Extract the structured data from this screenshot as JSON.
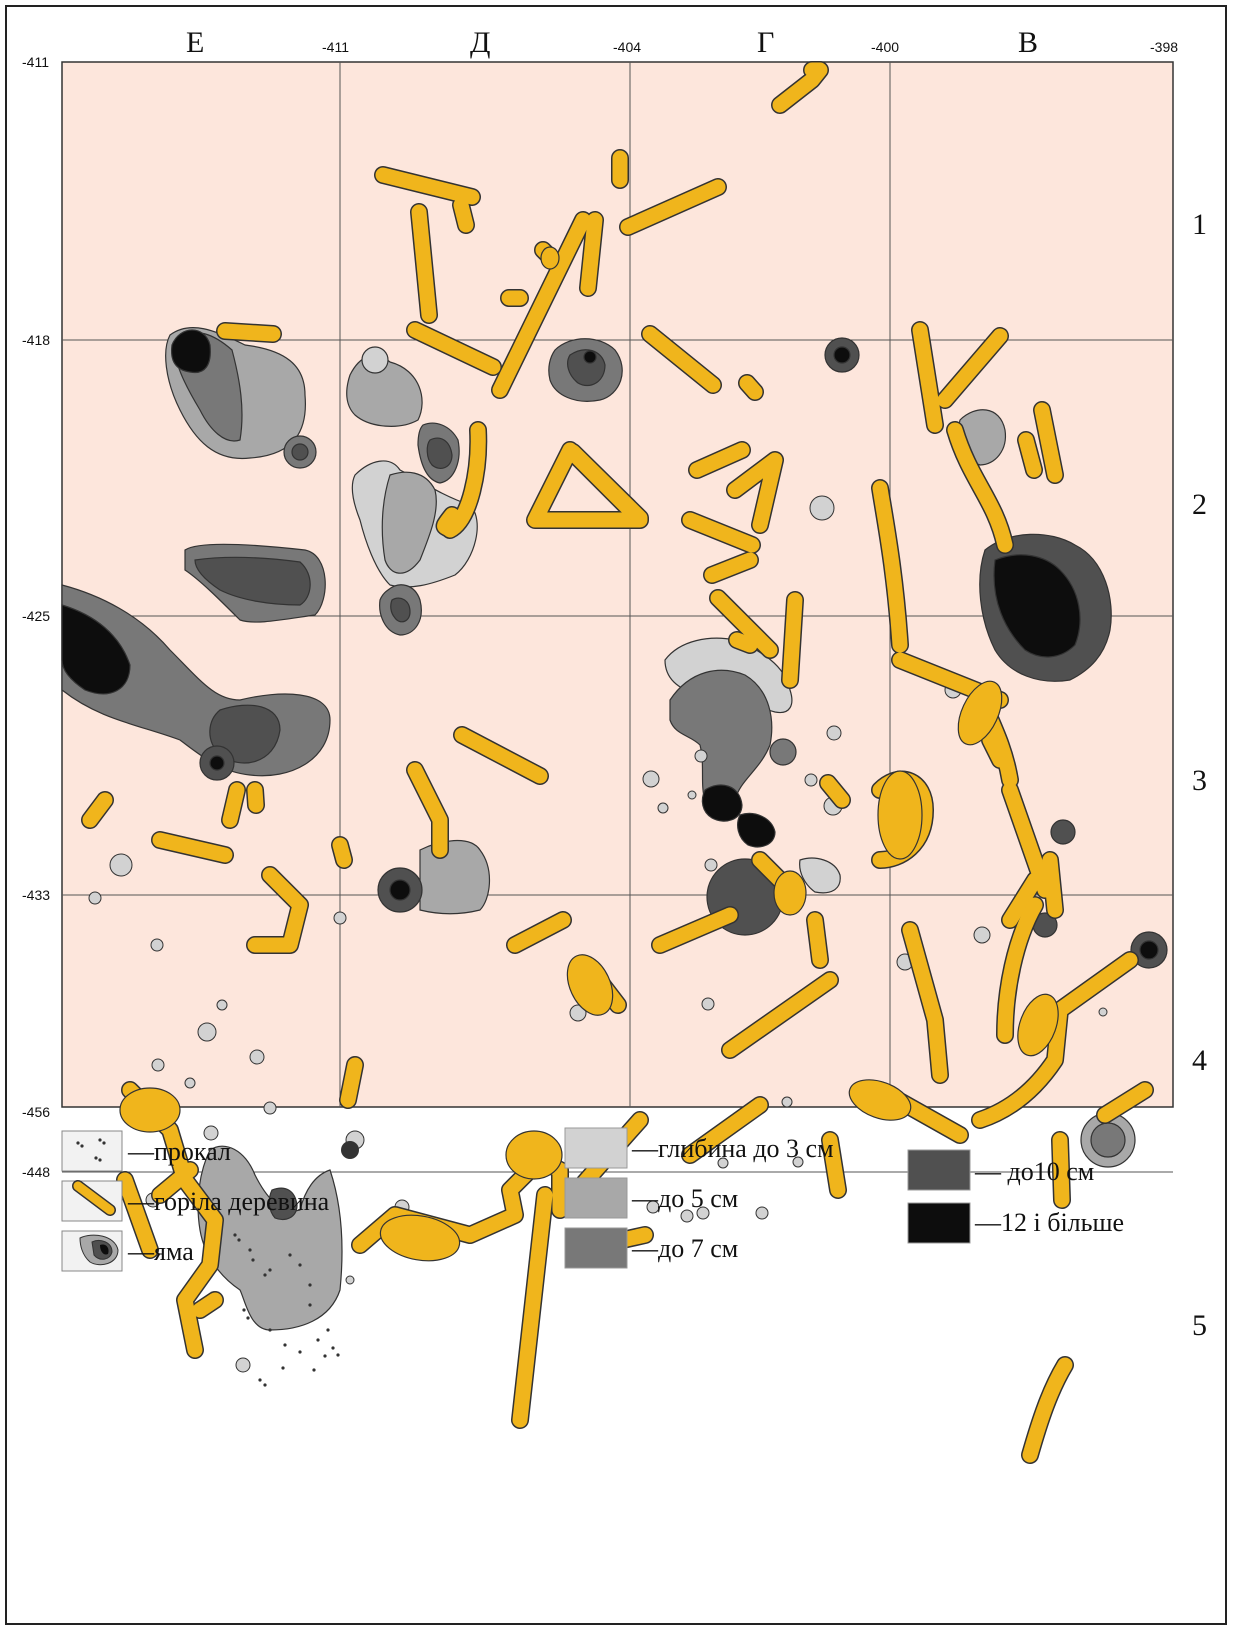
{
  "map": {
    "column_letters": [
      "Е",
      "Д",
      "Г",
      "В"
    ],
    "top_coords": [
      "-411",
      "-404",
      "-400",
      "-398"
    ],
    "left_coords": [
      "-411",
      "-418",
      "-425",
      "-433",
      "-448",
      "-456"
    ],
    "row_numbers": [
      "1",
      "2",
      "3",
      "4",
      "5"
    ]
  },
  "legend": {
    "items": [
      {
        "label": "—прокал",
        "icon": "calcined-soil-icon"
      },
      {
        "label": "—горіла деревина",
        "icon": "burnt-wood-icon"
      },
      {
        "label": "—яма",
        "icon": "pit-icon"
      },
      {
        "label": "—глибина до 3 см",
        "color": "#d2d2d2"
      },
      {
        "label": "—до 5 см",
        "color": "#a8a8a8"
      },
      {
        "label": "—до 7 см",
        "color": "#787878"
      },
      {
        "label": "— до10 см",
        "color": "#505050"
      },
      {
        "label": "—12 і більше",
        "color": "#0d0d0d"
      }
    ]
  },
  "colors": {
    "background": "#fde6dc",
    "wood": "#f0b51c",
    "depth3": "#d2d2d2",
    "depth5": "#a8a8a8",
    "depth7": "#787878",
    "depth10": "#505050",
    "depth12": "#0d0d0d"
  }
}
